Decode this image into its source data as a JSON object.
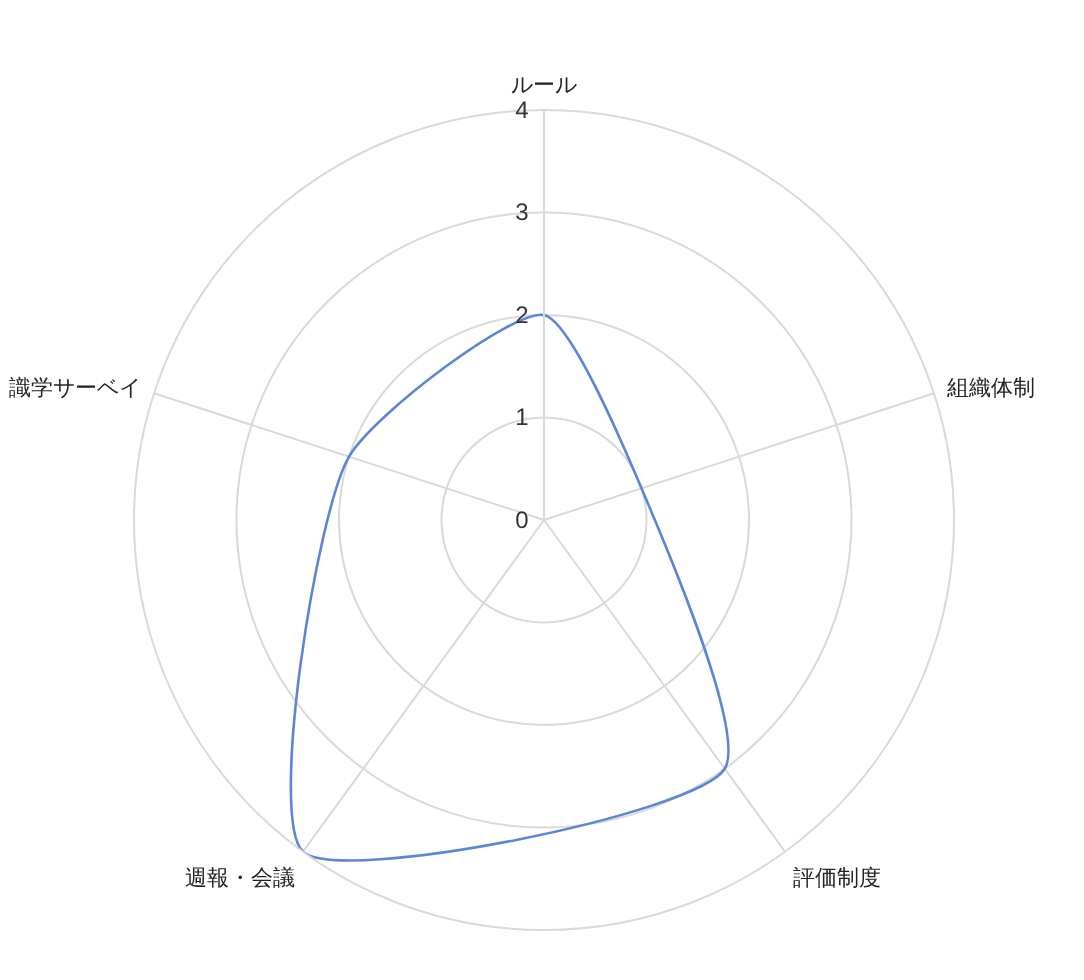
{
  "chart_data": {
    "type": "radar",
    "categories": [
      "ルール",
      "組織体制",
      "評価制度",
      "週報・会議",
      "識学サーベイ"
    ],
    "series": [
      {
        "color": "#5b86d6",
        "values": [
          2,
          1,
          3,
          4,
          2
        ]
      }
    ],
    "ylim": [
      0,
      4
    ],
    "yticks": [
      0,
      1,
      2,
      3,
      4
    ],
    "grid": true,
    "marker": "none",
    "line_style": "solid"
  }
}
